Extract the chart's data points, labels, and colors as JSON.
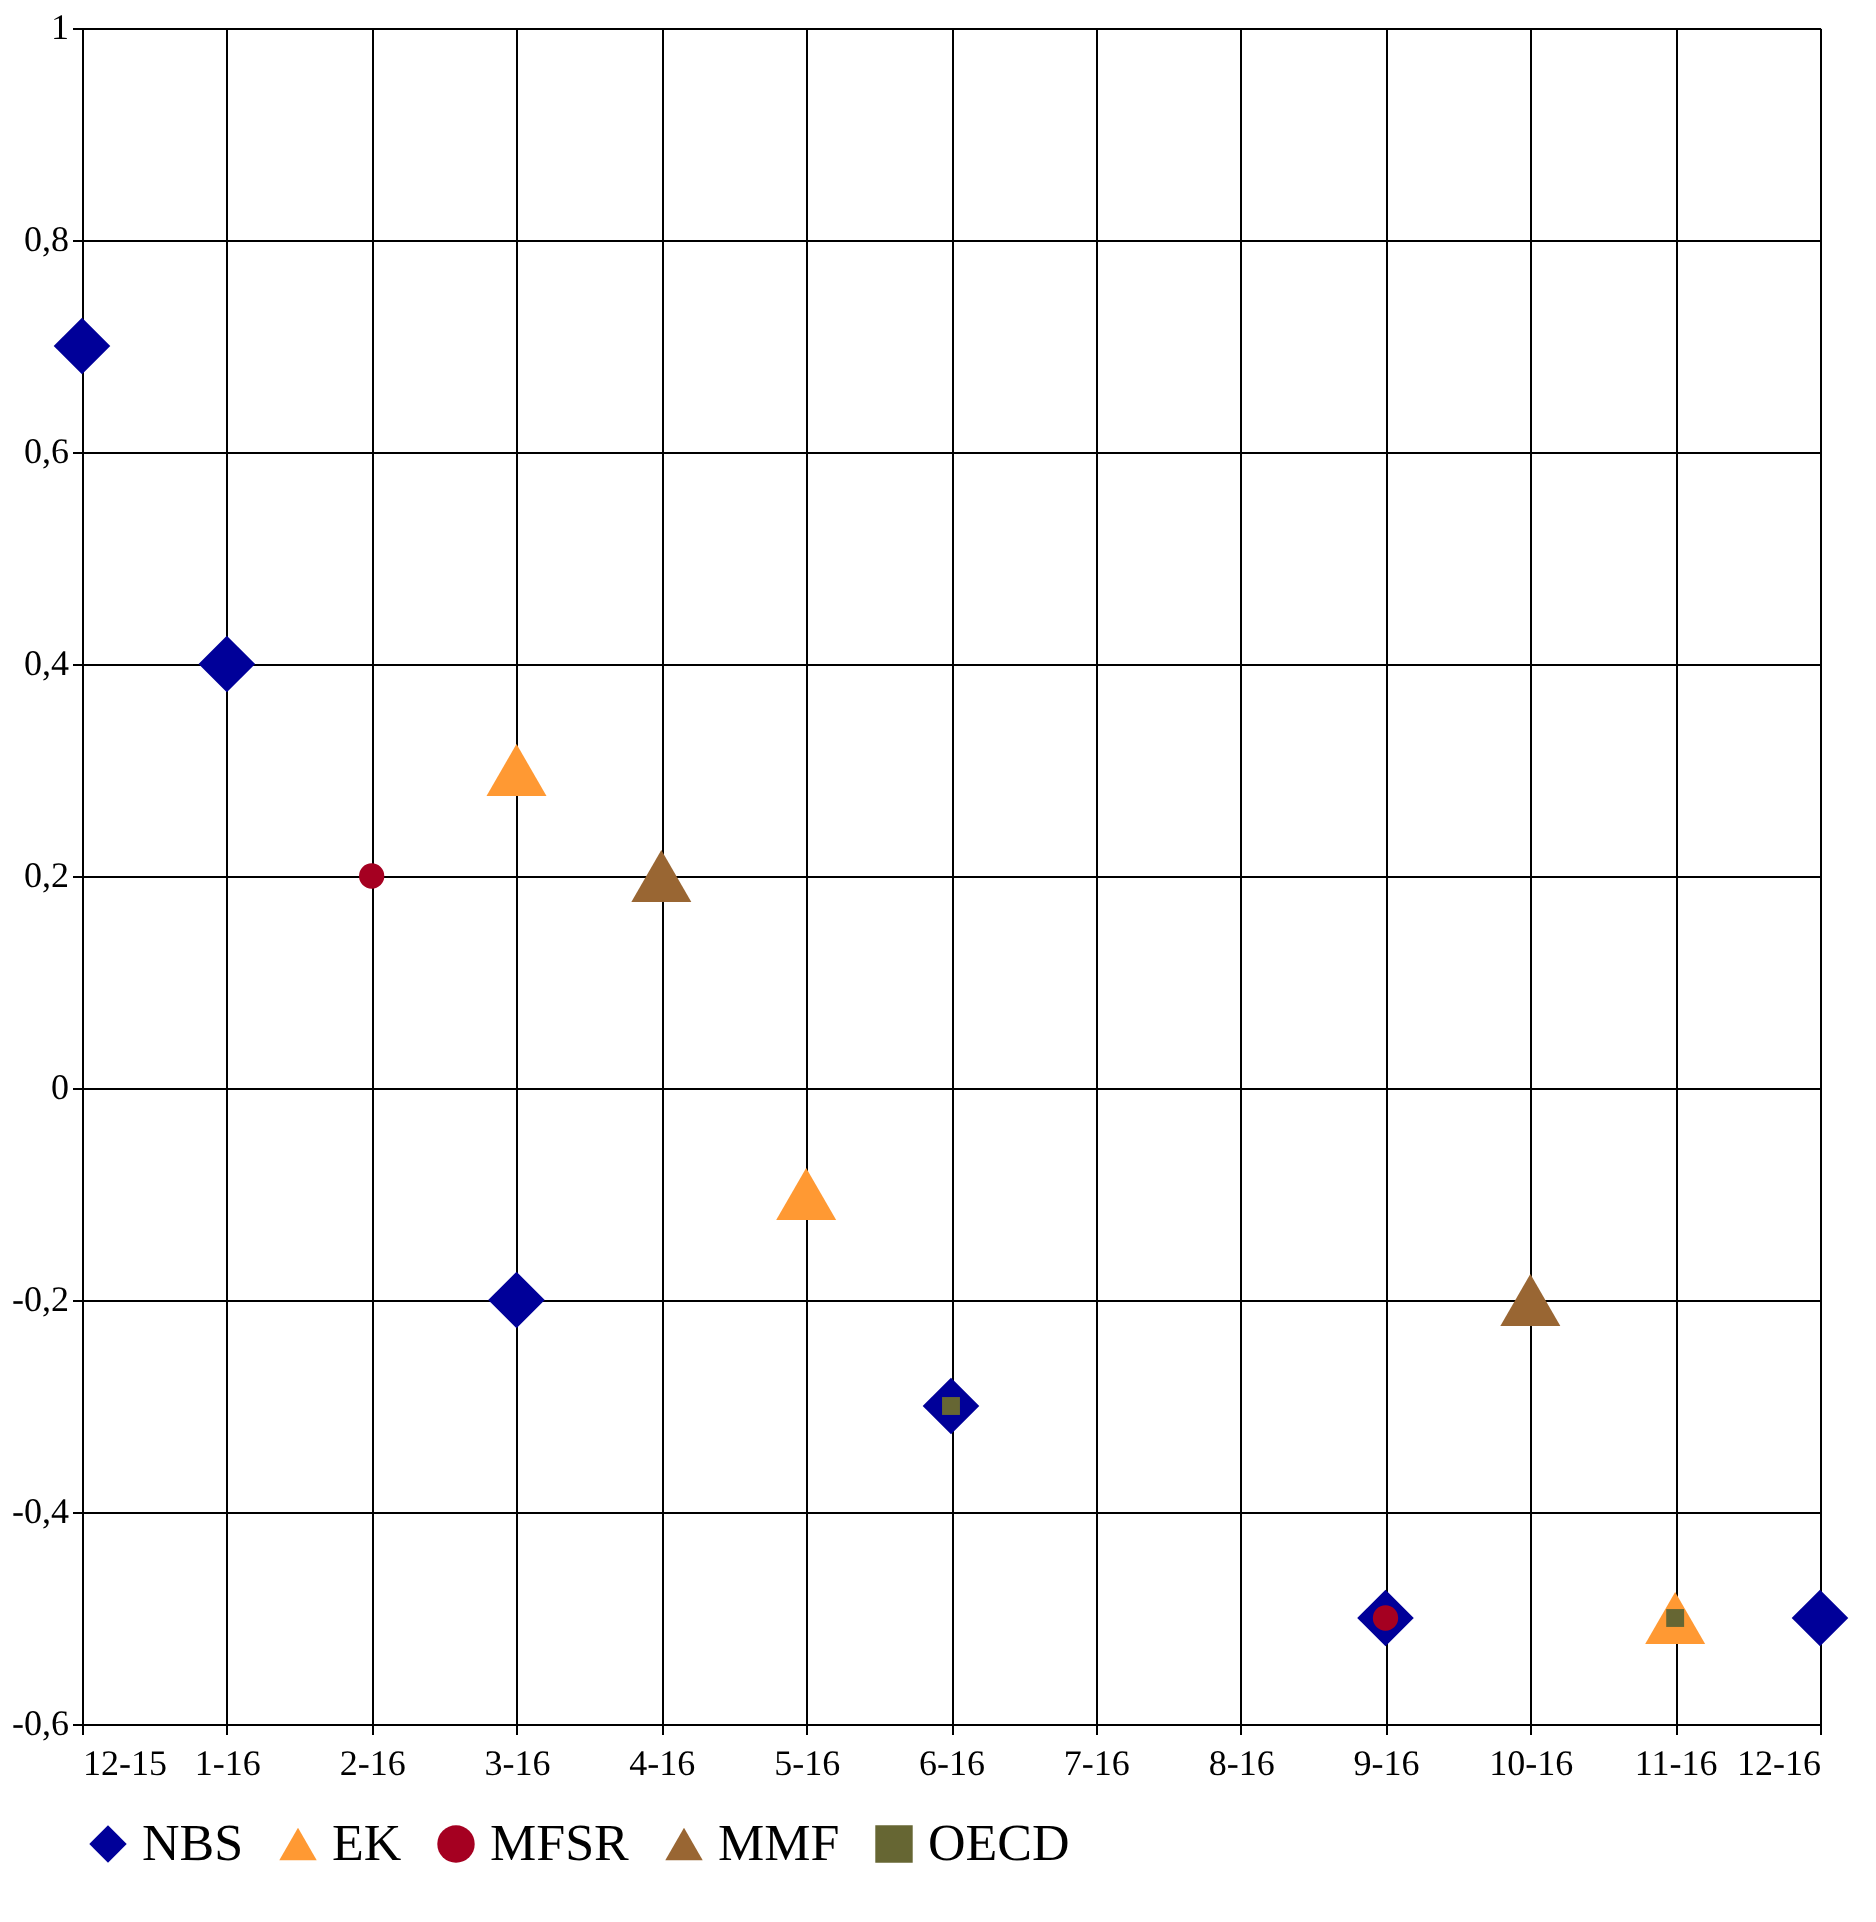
{
  "chart_data": {
    "type": "scatter",
    "categories": [
      "12-15",
      "1-16",
      "2-16",
      "3-16",
      "4-16",
      "5-16",
      "6-16",
      "7-16",
      "8-16",
      "9-16",
      "10-16",
      "11-16",
      "12-16"
    ],
    "series": [
      {
        "name": "NBS",
        "color": "#000099",
        "marker": "diamond",
        "values": [
          0.7,
          0.4,
          null,
          -0.2,
          null,
          null,
          -0.3,
          null,
          null,
          -0.5,
          null,
          null,
          -0.5
        ]
      },
      {
        "name": "EK",
        "color": "#ff9933",
        "marker": "triangle",
        "values": [
          null,
          null,
          null,
          0.3,
          null,
          -0.1,
          null,
          null,
          null,
          null,
          null,
          -0.5,
          null
        ]
      },
      {
        "name": "MFSR",
        "color": "#a50021",
        "marker": "circle",
        "values": [
          null,
          null,
          0.2,
          null,
          null,
          null,
          null,
          null,
          null,
          -0.5,
          null,
          null,
          null
        ]
      },
      {
        "name": "MMF",
        "color": "#996633",
        "marker": "triangle",
        "values": [
          null,
          null,
          null,
          null,
          0.2,
          null,
          null,
          null,
          null,
          null,
          -0.2,
          null,
          null
        ]
      },
      {
        "name": "OECD",
        "color": "#666633",
        "marker": "square",
        "values": [
          null,
          null,
          null,
          null,
          null,
          null,
          -0.3,
          null,
          null,
          null,
          null,
          -0.5,
          null
        ]
      }
    ],
    "ylim": [
      -0.6,
      1
    ],
    "yticks": [
      {
        "value": -0.6,
        "label": "-0,6"
      },
      {
        "value": -0.4,
        "label": "-0,4"
      },
      {
        "value": -0.2,
        "label": "-0,2"
      },
      0,
      {
        "value": 0.2,
        "label": "0,2"
      },
      {
        "value": 0.4,
        "label": "0,4"
      },
      {
        "value": 0.6,
        "label": "0,6"
      },
      {
        "value": 0.8,
        "label": "0,8"
      },
      1
    ],
    "grid": true,
    "legend": "bottom"
  }
}
